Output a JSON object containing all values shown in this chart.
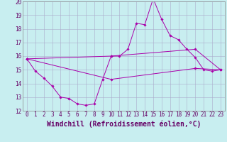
{
  "xlabel": "Windchill (Refroidissement éolien,°C)",
  "bg_color": "#c8eef0",
  "line_color": "#aa00aa",
  "ylim": [
    12,
    20
  ],
  "yticks": [
    12,
    13,
    14,
    15,
    16,
    17,
    18,
    19,
    20
  ],
  "xlim": [
    -0.5,
    23.5
  ],
  "xticks": [
    0,
    1,
    2,
    3,
    4,
    5,
    6,
    7,
    8,
    9,
    10,
    11,
    12,
    13,
    14,
    15,
    16,
    17,
    18,
    19,
    20,
    21,
    22,
    23
  ],
  "line1_x": [
    0,
    1,
    2,
    3,
    4,
    5,
    6,
    7,
    8,
    9,
    10,
    11,
    12,
    13,
    14,
    15,
    16,
    17,
    18,
    19,
    20,
    21,
    22,
    23
  ],
  "line1_y": [
    15.8,
    14.9,
    14.4,
    13.8,
    13.0,
    12.9,
    12.5,
    12.4,
    12.5,
    14.3,
    16.0,
    16.0,
    16.5,
    18.4,
    18.3,
    20.2,
    18.7,
    17.5,
    17.2,
    16.5,
    15.9,
    15.0,
    14.9,
    15.0
  ],
  "line2_x": [
    0,
    10,
    20,
    23
  ],
  "line2_y": [
    15.8,
    16.0,
    16.5,
    15.0
  ],
  "line3_x": [
    0,
    10,
    20,
    23
  ],
  "line3_y": [
    15.8,
    14.3,
    15.1,
    15.0
  ],
  "tick_fontsize": 5.5,
  "xlabel_fontsize": 7.0
}
